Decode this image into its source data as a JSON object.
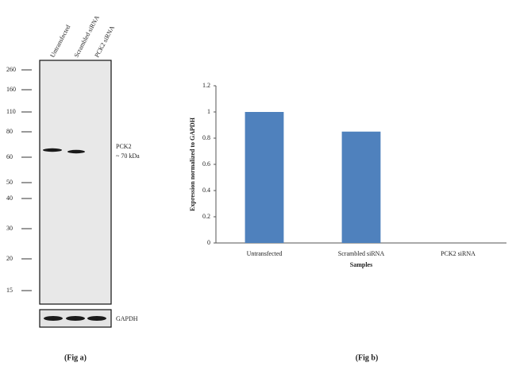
{
  "blot": {
    "lanes": [
      "Untransfected",
      "Scrambled siRNA",
      "PCK2 siRNA"
    ],
    "markers": [
      260,
      160,
      110,
      80,
      60,
      50,
      40,
      30,
      20,
      15
    ],
    "band_label": "PCK2",
    "band_size": "~ 70 kDa",
    "loading_control": "GAPDH",
    "caption": "(Fig a)"
  },
  "chart_data": {
    "type": "bar",
    "categories": [
      "Untransfected",
      "Scrambled siRNA",
      "PCK2 siRNA"
    ],
    "values": [
      1,
      0.85,
      0
    ],
    "color": "#4f81bd",
    "x_label": "Samples",
    "y_label": "Expression normalized to GAPDH",
    "ylim": [
      0,
      1.2
    ],
    "yticks": [
      0,
      0.2,
      0.4,
      0.6,
      0.8,
      1,
      1.2
    ],
    "grid": false,
    "caption": "(Fig b)"
  }
}
